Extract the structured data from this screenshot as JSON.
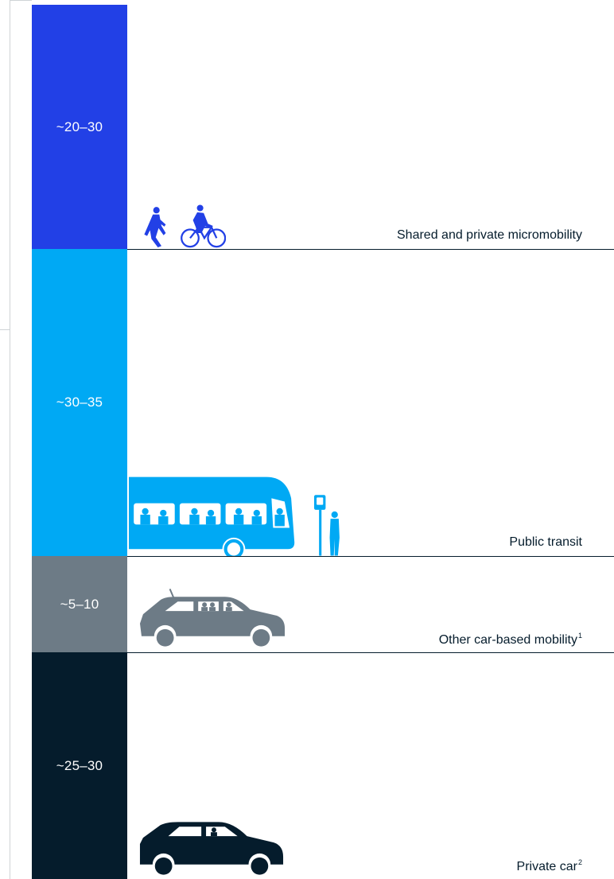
{
  "chart_data": {
    "type": "bar",
    "orientation": "stacked-vertical",
    "categories": [
      "Shared and private micromobility",
      "Public transit",
      "Other car-based mobility",
      "Private car"
    ],
    "footnote_markers": [
      "",
      "",
      "1",
      "2"
    ],
    "value_labels": [
      "~20–30",
      "~30–35",
      "~5–10",
      "~25–30"
    ],
    "ranges": [
      [
        20,
        30
      ],
      [
        30,
        35
      ],
      [
        5,
        10
      ],
      [
        25,
        30
      ]
    ],
    "colors": [
      "#2240e6",
      "#00a9f4",
      "#6d7b86",
      "#051c2c"
    ],
    "icons": [
      "pedestrian-and-cyclist-icon",
      "bus-and-stop-icon",
      "shared-car-icon",
      "private-car-icon"
    ],
    "title": "",
    "xlabel": "",
    "ylabel": ""
  }
}
